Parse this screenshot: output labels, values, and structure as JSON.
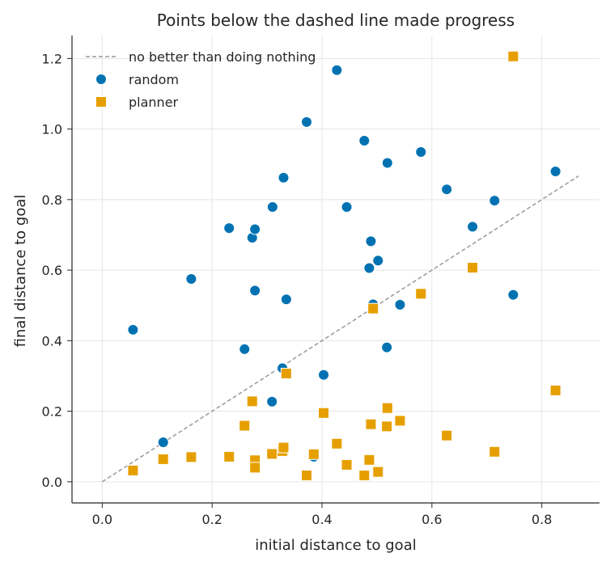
{
  "chart_data": {
    "type": "scatter",
    "title": "Points below the dashed line made progress",
    "xlabel": "initial distance to goal",
    "ylabel": "final distance to goal",
    "xlim": [
      -0.055,
      0.905
    ],
    "ylim": [
      -0.06,
      1.265
    ],
    "xticks": [
      "0.0",
      "0.2",
      "0.4",
      "0.6",
      "0.8"
    ],
    "yticks": [
      "0.0",
      "0.2",
      "0.4",
      "0.6",
      "0.8",
      "1.0",
      "1.2"
    ],
    "grid": true,
    "legend_position": "top-left",
    "reference_line": {
      "label": "no better than doing nothing",
      "from": [
        0.0,
        0.0
      ],
      "to": [
        0.867,
        0.867
      ],
      "color": "#999999",
      "style": "dashed"
    },
    "series": [
      {
        "name": "random",
        "marker": "circle",
        "color": "#0072b2",
        "points": [
          [
            0.056,
            0.431
          ],
          [
            0.111,
            0.112
          ],
          [
            0.162,
            0.575
          ],
          [
            0.231,
            0.719
          ],
          [
            0.259,
            0.376
          ],
          [
            0.273,
            0.692
          ],
          [
            0.278,
            0.716
          ],
          [
            0.278,
            0.542
          ],
          [
            0.309,
            0.227
          ],
          [
            0.31,
            0.779
          ],
          [
            0.328,
            0.322
          ],
          [
            0.33,
            0.862
          ],
          [
            0.335,
            0.517
          ],
          [
            0.372,
            1.02
          ],
          [
            0.385,
            0.071
          ],
          [
            0.403,
            0.303
          ],
          [
            0.427,
            1.167
          ],
          [
            0.445,
            0.779
          ],
          [
            0.477,
            0.967
          ],
          [
            0.486,
            0.606
          ],
          [
            0.489,
            0.682
          ],
          [
            0.493,
            0.503
          ],
          [
            0.502,
            0.627
          ],
          [
            0.518,
            0.381
          ],
          [
            0.519,
            0.904
          ],
          [
            0.542,
            0.502
          ],
          [
            0.58,
            0.935
          ],
          [
            0.627,
            0.829
          ],
          [
            0.674,
            0.723
          ],
          [
            0.714,
            0.797
          ],
          [
            0.748,
            0.53
          ],
          [
            0.825,
            0.88
          ]
        ]
      },
      {
        "name": "planner",
        "marker": "square",
        "color": "#e69f00",
        "points": [
          [
            0.056,
            0.032
          ],
          [
            0.111,
            0.064
          ],
          [
            0.162,
            0.07
          ],
          [
            0.231,
            0.071
          ],
          [
            0.259,
            0.159
          ],
          [
            0.273,
            0.228
          ],
          [
            0.278,
            0.061
          ],
          [
            0.278,
            0.04
          ],
          [
            0.309,
            0.079
          ],
          [
            0.328,
            0.087
          ],
          [
            0.33,
            0.097
          ],
          [
            0.335,
            0.307
          ],
          [
            0.372,
            0.018
          ],
          [
            0.385,
            0.078
          ],
          [
            0.403,
            0.195
          ],
          [
            0.427,
            0.108
          ],
          [
            0.445,
            0.048
          ],
          [
            0.477,
            0.018
          ],
          [
            0.486,
            0.062
          ],
          [
            0.489,
            0.163
          ],
          [
            0.493,
            0.491
          ],
          [
            0.502,
            0.028
          ],
          [
            0.518,
            0.157
          ],
          [
            0.519,
            0.209
          ],
          [
            0.542,
            0.173
          ],
          [
            0.58,
            0.533
          ],
          [
            0.627,
            0.131
          ],
          [
            0.674,
            0.607
          ],
          [
            0.714,
            0.085
          ],
          [
            0.748,
            1.206
          ],
          [
            0.825,
            0.259
          ]
        ]
      }
    ]
  }
}
